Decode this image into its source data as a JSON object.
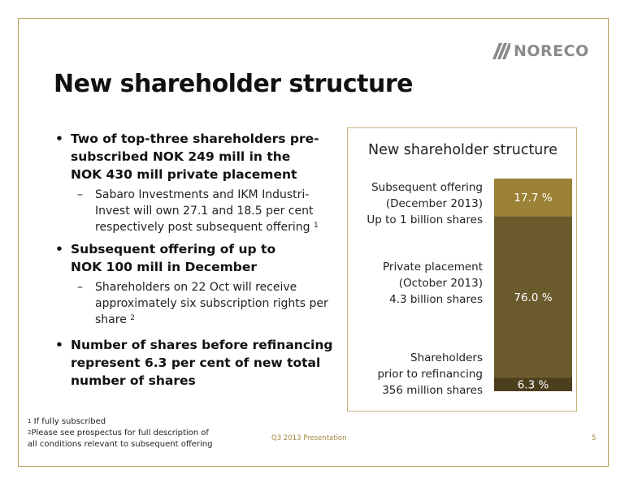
{
  "logo": {
    "text": "NORECO"
  },
  "title": "New shareholder structure",
  "bullets": [
    {
      "lines": [
        "Two of top-three shareholders pre-",
        "subscribed NOK 249 mill in the",
        "NOK 430 mill private placement"
      ],
      "sub": {
        "dash": "–",
        "lines": [
          "Sabaro Investments and IKM Industri-",
          "Invest will own 27.1 and 18.5 per cent",
          "respectively post subsequent offering "
        ],
        "footnote_ref": "1"
      }
    },
    {
      "lines": [
        "Subsequent offering of up to",
        "NOK 100 mill in December"
      ],
      "sub": {
        "dash": "–",
        "lines": [
          "Shareholders on 22 Oct will receive",
          "approximately six subscription rights per",
          "share "
        ],
        "footnote_ref": "2"
      }
    },
    {
      "lines": [
        "Number of shares before refinancing",
        "represent 6.3 per cent of new  total",
        "number of shares"
      ]
    }
  ],
  "chart_data": {
    "type": "bar",
    "stacked": true,
    "title": "New shareholder structure",
    "unit": "%",
    "segments": [
      {
        "label_lines": [
          "Shareholders",
          "prior to refinancing",
          "356 million shares"
        ],
        "value": 6.3,
        "value_label": "6.3 %",
        "color": "#4c3f1d"
      },
      {
        "label_lines": [
          "Private placement",
          "(October 2013)",
          "4.3 billion shares"
        ],
        "value": 76.0,
        "value_label": "76.0 %",
        "color": "#6b5b2c"
      },
      {
        "label_lines": [
          "Subsequent offering",
          "(December 2013)",
          "Up to 1 billion shares"
        ],
        "value": 17.7,
        "value_label": "17.7 %",
        "color": "#9c8236"
      }
    ]
  },
  "footnotes": [
    {
      "ref": "1",
      "lines": [
        "If fully subscribed"
      ]
    },
    {
      "ref": "2",
      "lines": [
        "Please see prospectus for full description of",
        "all conditions relevant to subsequent offering"
      ]
    }
  ],
  "footer": {
    "center": "Q3 2013 Presentation",
    "page": "5"
  },
  "colors": {
    "frame": "#b49a5a",
    "footer_text": "#a38842",
    "logo": "#8a8a8a"
  }
}
